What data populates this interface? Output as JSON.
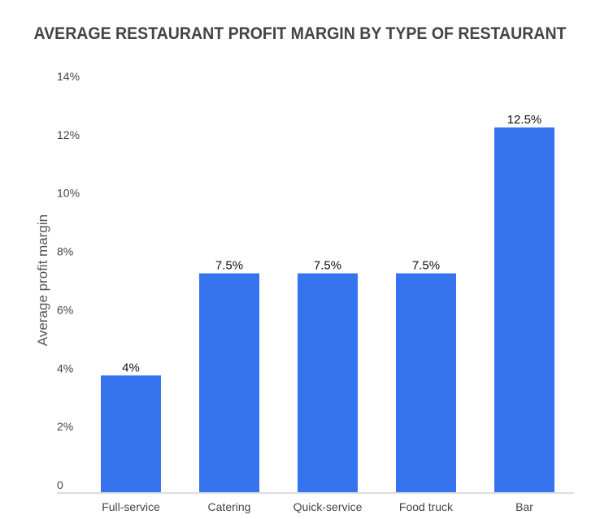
{
  "chart_data": {
    "type": "bar",
    "title": "AVERAGE RESTAURANT PROFIT MARGIN BY TYPE OF RESTAURANT",
    "xlabel": "",
    "ylabel": "Average profit margin",
    "categories": [
      "Full-service",
      "Catering",
      "Quick-service",
      "Food truck",
      "Bar"
    ],
    "values": [
      4,
      7.5,
      7.5,
      7.5,
      12.5
    ],
    "data_labels": [
      "4%",
      "7.5%",
      "7.5%",
      "7.5%",
      "12.5%"
    ],
    "ylim": [
      0,
      14
    ],
    "yticks": [
      0,
      2,
      4,
      6,
      8,
      10,
      12,
      14
    ],
    "ytick_labels": [
      "0",
      "2%",
      "4%",
      "6%",
      "8%",
      "10%",
      "12%",
      "14%"
    ],
    "grid": false,
    "legend": "none",
    "colors": {
      "bar": "#3574ee",
      "title": "#444444",
      "axis": "#dddddd"
    }
  }
}
